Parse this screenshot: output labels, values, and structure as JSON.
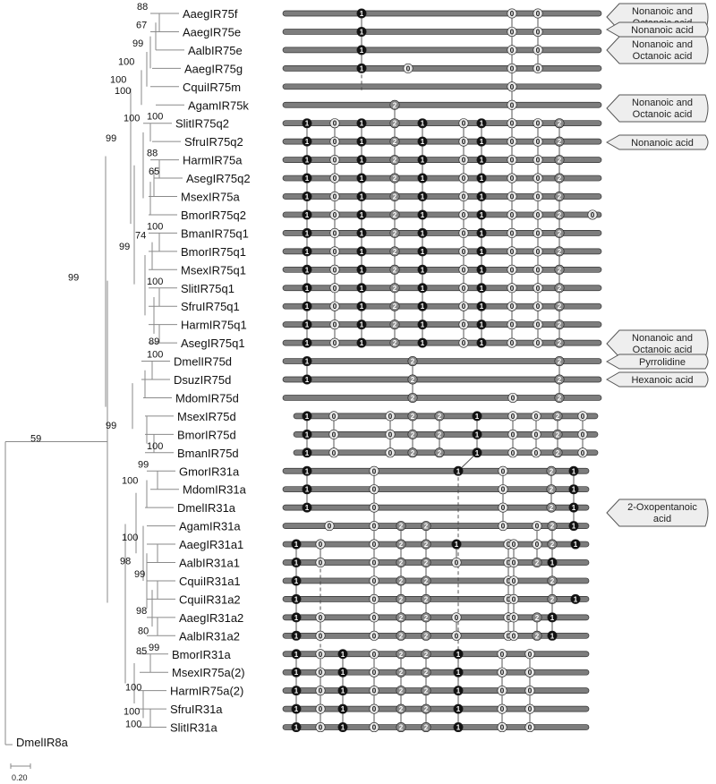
{
  "figure": {
    "tree": {
      "taxa": [
        "AaegIR75f",
        "AaegIR75e",
        "AalbIR75e",
        "AaegIR75g",
        "CquiIR75m",
        "AgamIR75k",
        "SlitIR75q2",
        "SfruIR75q2",
        "HarmIR75a",
        "AsegIR75q2",
        "MsexIR75a",
        "BmorIR75q2",
        "BmanIR75q1",
        "BmorIR75q1",
        "MsexIR75q1",
        "SlitIR75q1",
        "SfruIR75q1",
        "HarmIR75q1",
        "AsegIR75q1",
        "DmelIR75d",
        "DsuzIR75d",
        "MdomIR75d",
        "MsexIR75d",
        "BmorIR75d",
        "BmanIR75d",
        "GmorIR31a",
        "MdomIR31a",
        "DmelIR31a",
        "AgamIR31a",
        "AaegIR31a1",
        "AalbIR31a1",
        "CquiIR31a1",
        "CquiIR31a2",
        "AaegIR31a2",
        "AalbIR31a2",
        "BmorIR31a",
        "MsexIR75a(2)",
        "HarmIR75a(2)",
        "SfruIR31a",
        "SlitIR31a"
      ],
      "outgroup": "DmelIR8a",
      "bootstrap": [
        "88",
        "67",
        "99",
        "100",
        "100",
        "100",
        "100",
        "88",
        "65",
        "74",
        "100",
        "100",
        "89",
        "99",
        "100",
        "99",
        "99",
        "59",
        "100",
        "99",
        "100",
        "99",
        "100",
        "100",
        "98",
        "99",
        "98",
        "80",
        "99",
        "85",
        "100",
        "100",
        "100"
      ],
      "scale_label": "0.20"
    },
    "intron_phases": [
      [
        "1",
        "0",
        "0"
      ],
      [
        "1",
        "0",
        "0"
      ],
      [
        "1",
        "0",
        "0"
      ],
      [
        "1",
        "0",
        "0",
        "0"
      ],
      [
        "0"
      ],
      [
        "2",
        "0"
      ],
      [
        "1",
        "0",
        "1",
        "2",
        "1",
        "0",
        "1",
        "0",
        "0",
        "2"
      ],
      [
        "1",
        "0",
        "1",
        "2",
        "1",
        "0",
        "1",
        "0",
        "0",
        "2"
      ],
      [
        "1",
        "0",
        "1",
        "2",
        "1",
        "0",
        "1",
        "0",
        "0",
        "2"
      ],
      [
        "1",
        "0",
        "1",
        "2",
        "1",
        "0",
        "1",
        "0",
        "0",
        "2"
      ],
      [
        "1",
        "0",
        "1",
        "2",
        "1",
        "0",
        "1",
        "0",
        "0",
        "2"
      ],
      [
        "1",
        "0",
        "1",
        "2",
        "1",
        "0",
        "1",
        "0",
        "0",
        "2",
        "0"
      ],
      [
        "1",
        "0",
        "1",
        "2",
        "1",
        "0",
        "1",
        "0",
        "0",
        "2"
      ],
      [
        "1",
        "0",
        "1",
        "2",
        "1",
        "0",
        "1",
        "0",
        "0",
        "2"
      ],
      [
        "1",
        "0",
        "1",
        "2",
        "1",
        "0",
        "1",
        "0",
        "0",
        "2"
      ],
      [
        "1",
        "0",
        "1",
        "2",
        "1",
        "0",
        "1",
        "0",
        "0",
        "2"
      ],
      [
        "1",
        "0",
        "1",
        "2",
        "1",
        "0",
        "1",
        "0",
        "0",
        "2"
      ],
      [
        "1",
        "0",
        "1",
        "2",
        "1",
        "0",
        "1",
        "0",
        "0",
        "2"
      ],
      [
        "1",
        "0",
        "1",
        "2",
        "1",
        "0",
        "1",
        "0",
        "0",
        "2"
      ],
      [
        "1",
        "2",
        "2"
      ],
      [
        "1",
        "2",
        "2"
      ],
      [
        "2",
        "0",
        "2"
      ],
      [
        "1",
        "0",
        "0",
        "2",
        "2",
        "1",
        "0",
        "0",
        "2",
        "0"
      ],
      [
        "1",
        "0",
        "0",
        "2",
        "2",
        "1",
        "0",
        "0",
        "2",
        "0"
      ],
      [
        "1",
        "0",
        "0",
        "2",
        "2",
        "1",
        "0",
        "0",
        "2",
        "0"
      ],
      [
        "1",
        "0",
        "1",
        "0",
        "2",
        "1"
      ],
      [
        "1",
        "0",
        "0",
        "2",
        "1"
      ],
      [
        "1",
        "0",
        "0",
        "2",
        "1"
      ],
      [
        "0",
        "0",
        "2",
        "2",
        "0",
        "0",
        "2",
        "1"
      ],
      [
        "1",
        "0",
        "0",
        "2",
        "2",
        "1",
        "0",
        "0",
        "0",
        "2",
        "1"
      ],
      [
        "1",
        "0",
        "0",
        "2",
        "2",
        "0",
        "0",
        "0",
        "2",
        "1"
      ],
      [
        "1",
        "0",
        "2",
        "2",
        "0",
        "0",
        "2"
      ],
      [
        "1",
        "0",
        "2",
        "2",
        "0",
        "0",
        "2",
        "1"
      ],
      [
        "1",
        "0",
        "0",
        "2",
        "2",
        "0",
        "0",
        "0",
        "2",
        "1"
      ],
      [
        "1",
        "0",
        "0",
        "2",
        "2",
        "0",
        "0",
        "0",
        "2",
        "1"
      ],
      [
        "1",
        "0",
        "1",
        "0",
        "2",
        "2",
        "1",
        "0",
        "0"
      ],
      [
        "1",
        "0",
        "1",
        "0",
        "2",
        "2",
        "1",
        "0",
        "0"
      ],
      [
        "1",
        "0",
        "1",
        "0",
        "2",
        "2",
        "1",
        "0",
        "0"
      ],
      [
        "1",
        "0",
        "1",
        "0",
        "2",
        "2",
        "1",
        "0",
        "0"
      ],
      [
        "1",
        "0",
        "1",
        "0",
        "2",
        "2",
        "1",
        "0",
        "0"
      ]
    ],
    "ligands": [
      {
        "text": "Nonanoic and Octanoic acid"
      },
      {
        "text": "Nonanoic acid"
      },
      {
        "text": "Nonanoic and Octanoic acid"
      },
      {
        "text": "Nonanoic and Octanoic acid"
      },
      {
        "text": "Nonanoic acid"
      },
      {
        "text": "Nonanoic and Octanoic acid"
      },
      {
        "text": "Pyrrolidine"
      },
      {
        "text": "Hexanoic acid"
      },
      {
        "text": "2-Oxopentanoic acid"
      }
    ],
    "colors": {
      "phase0": "#e8e8e8",
      "phase1": "#111111",
      "phase2": "#8a8a8a",
      "bar": "#7d7d7d"
    }
  }
}
